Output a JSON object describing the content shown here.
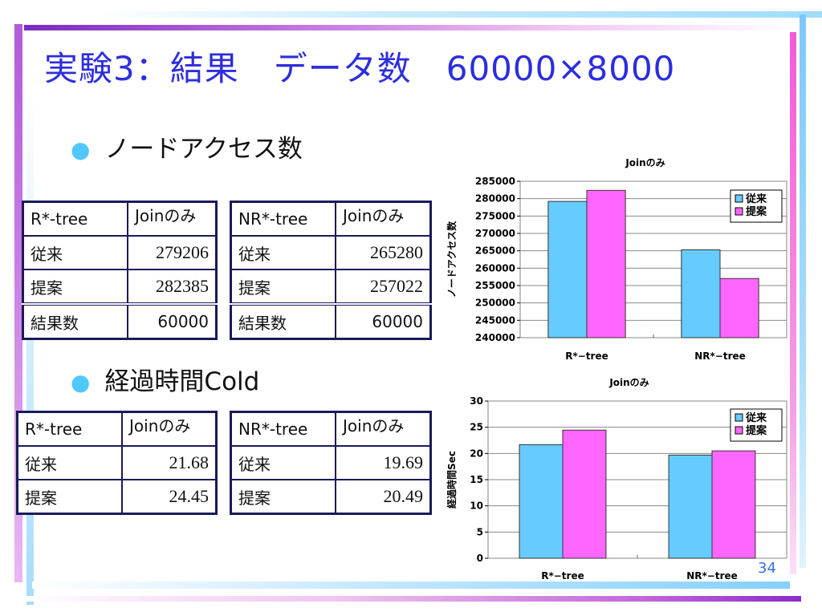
{
  "slide": {
    "title": "実験3：結果　データ数　60000×8000",
    "page_number": "34"
  },
  "bullets": [
    "ノードアクセス数",
    "経過時間Cold"
  ],
  "tables": {
    "node_rtree": {
      "header": [
        "R*-tree",
        "Joinのみ"
      ],
      "rows": [
        [
          "従来",
          "279206"
        ],
        [
          "提案",
          "282385"
        ],
        [
          "結果数",
          "60000"
        ]
      ]
    },
    "node_nrtree": {
      "header": [
        "NR*-tree",
        "Joinのみ"
      ],
      "rows": [
        [
          "従来",
          "265280"
        ],
        [
          "提案",
          "257022"
        ],
        [
          "結果数",
          "60000"
        ]
      ]
    },
    "time_rtree": {
      "header": [
        "R*-tree",
        "Joinのみ"
      ],
      "rows": [
        [
          "従来",
          "21.68"
        ],
        [
          "提案",
          "24.45"
        ]
      ]
    },
    "time_nrtree": {
      "header": [
        "NR*-tree",
        "Joinのみ"
      ],
      "rows": [
        [
          "従来",
          "19.69"
        ],
        [
          "提案",
          "20.49"
        ]
      ]
    }
  },
  "colors": {
    "series_conventional": "#66ccff",
    "series_proposed": "#ff66ff",
    "title": "#2d2dde",
    "table_border": "#1a1a5a"
  },
  "chart_data": [
    {
      "type": "bar",
      "title": "Joinのみ",
      "ylabel": "ノードアクセス数",
      "xlabel": "",
      "categories": [
        "R*−tree",
        "NR*−tree"
      ],
      "series": [
        {
          "name": "従来",
          "values": [
            279206,
            265280
          ]
        },
        {
          "name": "提案",
          "values": [
            282385,
            257022
          ]
        }
      ],
      "ylim": [
        240000,
        285000
      ],
      "ytick_step": 5000,
      "yticks": [
        "240000",
        "245000",
        "250000",
        "255000",
        "260000",
        "265000",
        "270000",
        "275000",
        "280000",
        "285000"
      ],
      "grid": true,
      "legend": "top-right"
    },
    {
      "type": "bar",
      "title": "Joinのみ",
      "ylabel": "経過時間Sec",
      "xlabel": "",
      "categories": [
        "R*−tree",
        "NR*−tree"
      ],
      "series": [
        {
          "name": "従来",
          "values": [
            21.68,
            19.69
          ]
        },
        {
          "name": "提案",
          "values": [
            24.45,
            20.49
          ]
        }
      ],
      "ylim": [
        0,
        30
      ],
      "ytick_step": 5,
      "yticks": [
        "0",
        "5",
        "10",
        "15",
        "20",
        "25",
        "30"
      ],
      "grid": true,
      "legend": "top-right"
    }
  ]
}
